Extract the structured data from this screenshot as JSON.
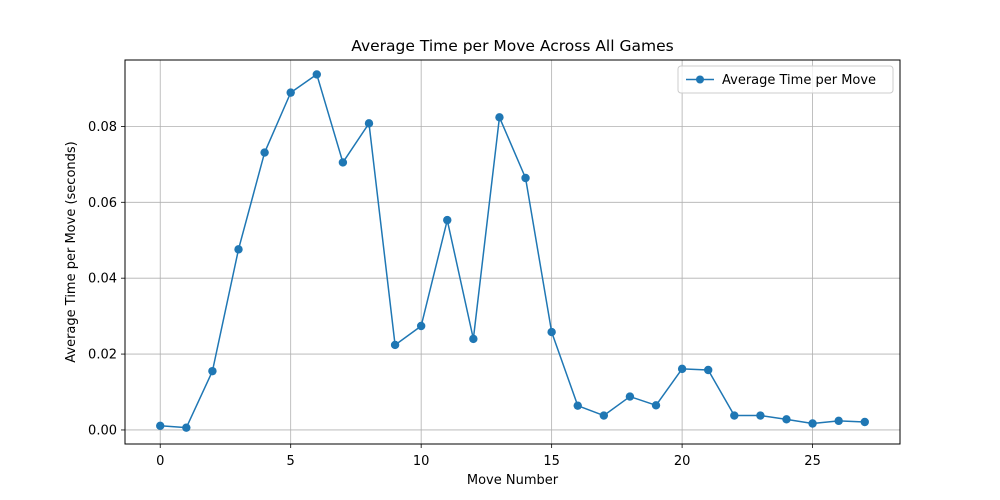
{
  "chart_data": {
    "type": "line",
    "title": "Average Time per Move Across All Games",
    "xlabel": "Move Number",
    "ylabel": "Average Time per Move (seconds)",
    "xlim": [
      -1.35,
      28.35
    ],
    "ylim": [
      -0.0037,
      0.0975
    ],
    "xticks": [
      0,
      5,
      10,
      15,
      20,
      25
    ],
    "xtick_labels": [
      "0",
      "5",
      "10",
      "15",
      "20",
      "25"
    ],
    "yticks": [
      0.0,
      0.02,
      0.04,
      0.06,
      0.08
    ],
    "ytick_labels": [
      "0.00",
      "0.02",
      "0.04",
      "0.06",
      "0.08"
    ],
    "grid": true,
    "legend_position": "top-right",
    "series": [
      {
        "name": "Average Time per Move",
        "color": "#1f77b4",
        "marker": "circle",
        "x": [
          0,
          1,
          2,
          3,
          4,
          5,
          6,
          7,
          8,
          9,
          10,
          11,
          12,
          13,
          14,
          15,
          16,
          17,
          18,
          19,
          20,
          21,
          22,
          23,
          24,
          25,
          26,
          27
        ],
        "values": [
          0.0011,
          0.0006,
          0.0155,
          0.0476,
          0.0731,
          0.0889,
          0.0937,
          0.0705,
          0.0808,
          0.0224,
          0.0274,
          0.0553,
          0.024,
          0.0824,
          0.0664,
          0.0258,
          0.0064,
          0.0038,
          0.0088,
          0.0065,
          0.0161,
          0.0158,
          0.0038,
          0.0038,
          0.0028,
          0.0017,
          0.0024,
          0.0021
        ]
      }
    ]
  }
}
